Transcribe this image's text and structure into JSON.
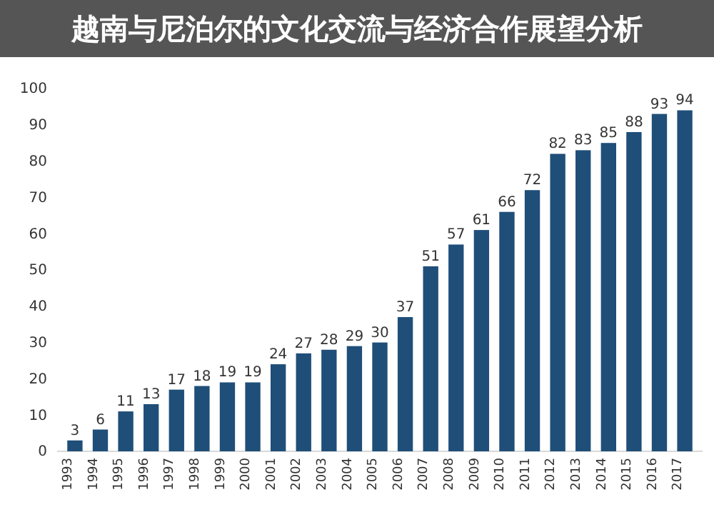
{
  "chart_data": {
    "type": "bar",
    "title": "越南与尼泊尔的文化交流与经济合作展望分析",
    "categories": [
      "1993",
      "1994",
      "1995",
      "1996",
      "1997",
      "1998",
      "1999",
      "2000",
      "2001",
      "2002",
      "2003",
      "2004",
      "2005",
      "2006",
      "2007",
      "2008",
      "2009",
      "2010",
      "2011",
      "2012",
      "2013",
      "2014",
      "2015",
      "2016",
      "2017"
    ],
    "values": [
      3,
      6,
      11,
      13,
      17,
      18,
      19,
      19,
      24,
      27,
      28,
      29,
      30,
      37,
      51,
      57,
      61,
      66,
      72,
      82,
      83,
      85,
      88,
      93,
      94
    ],
    "color": "#1f4e79",
    "ylim": [
      0,
      100
    ],
    "yticks": [
      0,
      10,
      20,
      30,
      40,
      50,
      60,
      70,
      80,
      90,
      100
    ],
    "grid": false,
    "data_labels": true
  }
}
